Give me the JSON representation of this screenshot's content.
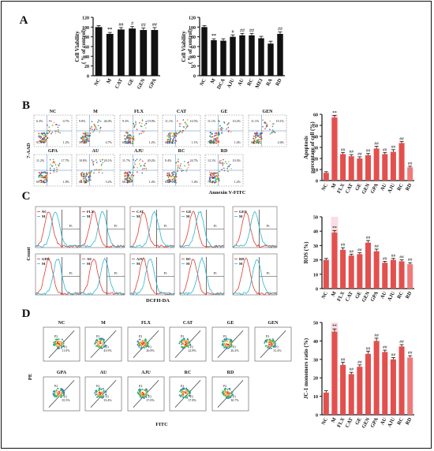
{
  "panels": {
    "A": "A",
    "B": "B",
    "C": "C",
    "D": "D"
  },
  "colors": {
    "black_bar": "#111111",
    "red_bar": "#e2504e",
    "red_bar_light": "#f07a78",
    "pink_bar": "#f3b3c0",
    "cyan_line": "#2ab5cf",
    "red_line": "#e03a2f",
    "flow_blue": "#3c63d6",
    "flow_green": "#26b36a",
    "flow_red": "#e53a2a",
    "flow_orange": "#f2a23a"
  },
  "panelB": {
    "ylabel": "7-AAD",
    "xlabel": "Annexin V-FITC",
    "row1": [
      "NC",
      "M",
      "FLX",
      "CAT",
      "GE",
      "GEN"
    ],
    "row2": [
      "GPA",
      "AU",
      "AJU",
      "RC",
      "RD"
    ],
    "q1_row1": [
      "6.3%",
      "9.8%",
      "9.3%",
      "11.1%",
      "11.1%",
      "11.1%"
    ],
    "q2_row1": [
      "0.7%",
      "46.0%",
      "19.9%",
      "10.5%",
      "10.2%",
      "19.1%"
    ],
    "q3_row1": [
      "91.6%",
      "39.4%",
      "69.5%",
      "67.8%",
      "76.1%",
      "66.7%"
    ],
    "q4_row1": [
      "1.2%",
      "4.7%",
      "1.2%",
      "1.1%",
      "1.4%",
      "2.6%"
    ],
    "q1_row2": [
      "11.2%",
      "10.8%",
      "11.7%",
      "9.4%",
      "12.1%"
    ],
    "q2_row2": [
      "17.7%",
      "20.1%",
      "20.2%",
      "24.7%",
      "10.3%"
    ],
    "q3_row2": [
      "69.2%",
      "64.5%",
      "66.4%",
      "64.5%",
      "76.4%"
    ],
    "q4_row2": [
      "1.8%",
      "3.2%",
      "1.4%",
      "1.4%",
      "1.2%"
    ]
  },
  "panelC": {
    "ylabel": "Count",
    "xlabel": "DCFH-DA",
    "row1": [
      "NC",
      "FLX",
      "GE",
      "GEN"
    ],
    "row1b": [
      "M",
      "M",
      "M",
      "M",
      "M"
    ],
    "row2": [
      "GPA",
      "AU",
      "AJU",
      "RC",
      "RD"
    ],
    "gate": "P1"
  },
  "panelD": {
    "ylabel": "PE",
    "xlabel": "FITC",
    "row1": [
      "NC",
      "M",
      "FLX",
      "CAT",
      "GE",
      "GEN"
    ],
    "row2": [
      "GPA",
      "AU",
      "AJU",
      "RC",
      "RD"
    ],
    "gate_upper": "P2",
    "gate_lower": "P3",
    "pct_row1": [
      "11.8%",
      "43.9%",
      "26.8%",
      "22.8%",
      "26.2%",
      "31.4%"
    ],
    "pct_row2": [
      "35.5%",
      "33.4%",
      "37.0%",
      "37.8%",
      "30.7%"
    ]
  },
  "chart_data": [
    {
      "panel": "A-left",
      "type": "bar",
      "categories": [
        "NC",
        "M",
        "CAT",
        "GE",
        "GEN",
        "GPA"
      ],
      "values": [
        100,
        86,
        95,
        97,
        94,
        94
      ],
      "errors": [
        3,
        3,
        4,
        4,
        4,
        5
      ],
      "annotations": [
        "",
        "**",
        "##",
        "#",
        "##",
        "##"
      ],
      "ylabel": "Cell Viability\n( % of control)",
      "yticks": [
        0,
        20,
        40,
        60,
        80,
        100,
        120
      ],
      "ylim": [
        0,
        120
      ],
      "color": "#111111"
    },
    {
      "panel": "A-right",
      "type": "bar",
      "categories": [
        "NC",
        "M",
        "DCA",
        "AJU",
        "AU",
        "RC",
        "MEI",
        "RA",
        "RD"
      ],
      "values": [
        100,
        73,
        72,
        80,
        83,
        83,
        77,
        66,
        86
      ],
      "errors": [
        3,
        3,
        4,
        4,
        4,
        4,
        4,
        5,
        4
      ],
      "annotations": [
        "",
        "**",
        "",
        "#",
        "##",
        "##",
        "",
        "",
        "##"
      ],
      "ylabel": "Cell Viability\n( % of control)",
      "yticks": [
        0,
        20,
        40,
        60,
        80,
        100,
        120
      ],
      "ylim": [
        0,
        120
      ],
      "color": "#111111"
    },
    {
      "panel": "B",
      "type": "bar",
      "categories": [
        "NC",
        "M",
        "FLX",
        "CAT",
        "GE",
        "GEN",
        "GPA",
        "AU",
        "AJU",
        "RC",
        "RD"
      ],
      "values": [
        7,
        57,
        24,
        22,
        20,
        23,
        29,
        24,
        26,
        34,
        12
      ],
      "errors": [
        1,
        2,
        1.5,
        1.5,
        1.5,
        1.5,
        2,
        1.5,
        2,
        1.5,
        1
      ],
      "annotations": [
        "",
        "**",
        "##",
        "##",
        "##",
        "##",
        "##",
        "##",
        "##",
        "##",
        "##"
      ],
      "ylabel": "Apoptosis\npercentage of cell (%)",
      "yticks": [
        0,
        10,
        20,
        30,
        40,
        50,
        60
      ],
      "ylim": [
        0,
        60
      ],
      "color": "#e2504e"
    },
    {
      "panel": "C",
      "type": "bar",
      "categories": [
        "NC",
        "M",
        "FLX",
        "CAT",
        "GE",
        "GEN",
        "GPA",
        "AU",
        "AJU",
        "RC",
        "RD"
      ],
      "values": [
        20,
        39,
        27,
        23,
        24,
        32,
        26,
        18,
        20,
        19,
        17
      ],
      "errors": [
        1,
        1.5,
        1.5,
        1,
        1,
        1.5,
        1.5,
        1,
        1,
        1,
        1
      ],
      "annotations": [
        "",
        "**",
        "##",
        "##",
        "##",
        "##",
        "##",
        "##",
        "##",
        "##",
        "##"
      ],
      "ylabel": "ROS (%)",
      "yticks": [
        0,
        10,
        20,
        30,
        40,
        50
      ],
      "ylim": [
        0,
        50
      ],
      "color": "#e2504e"
    },
    {
      "panel": "D",
      "type": "bar",
      "categories": [
        "NC",
        "M",
        "FLX",
        "CAT",
        "GE",
        "GEN",
        "GPA",
        "AU",
        "AJU",
        "RC",
        "RD"
      ],
      "values": [
        12,
        45,
        27,
        22,
        26,
        33,
        40,
        34,
        30,
        37,
        31
      ],
      "errors": [
        1,
        1.5,
        1.5,
        1,
        1,
        1.5,
        1.5,
        1,
        1,
        1,
        1
      ],
      "annotations": [
        "",
        "**",
        "##",
        "##",
        "##",
        "##",
        "##",
        "##",
        "##",
        "##",
        "##"
      ],
      "ylabel": "JC-1 monomers ratio (%)",
      "yticks": [
        0,
        10,
        20,
        30,
        40,
        50
      ],
      "ylim": [
        0,
        50
      ],
      "color": "#e2504e"
    }
  ]
}
